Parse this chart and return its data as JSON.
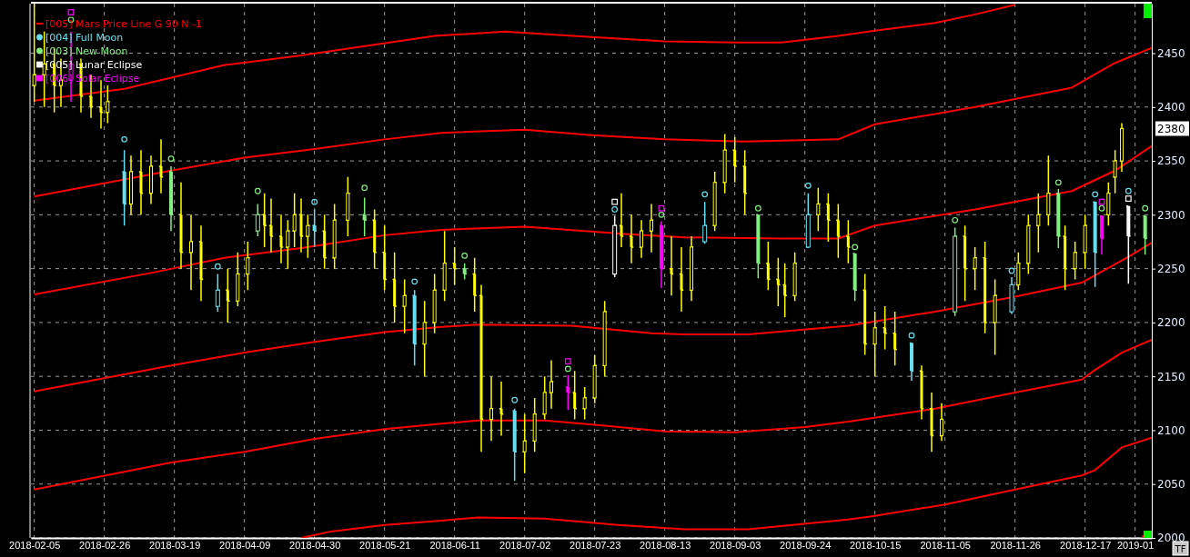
{
  "chart_data": {
    "type": "candlestick",
    "xlim": [
      "2018-02-04",
      "2019-01-06"
    ],
    "ylim": [
      2000,
      2496
    ],
    "xticks": [
      "2018-02-05",
      "2018-02-26",
      "2018-03-19",
      "2018-04-09",
      "2018-04-30",
      "2018-05-21",
      "2018-06-11",
      "2018-07-02",
      "2018-07-23",
      "2018-08-13",
      "2018-09-03",
      "2018-09-24",
      "2018-10-15",
      "2018-11-05",
      "2018-11-26",
      "2018-12-17",
      "2019-01"
    ],
    "yticks": [
      2000,
      2050,
      2100,
      2150,
      2200,
      2250,
      2300,
      2350,
      2400,
      2450
    ],
    "grid": true,
    "legend": "top left",
    "annotations": [
      "2380",
      "TF"
    ],
    "series": [
      {
        "color": "#ffff00",
        "x": [
          "2018-02-05",
          "2018-02-08",
          "2018-02-11",
          "2018-02-13",
          "2018-02-19",
          "2018-02-22",
          "2018-02-25",
          "2018-02-27",
          "2018-03-06",
          "2018-03-09",
          "2018-03-12",
          "2018-03-15",
          "2018-03-21",
          "2018-03-24",
          "2018-03-27",
          "2018-04-04",
          "2018-04-07",
          "2018-04-10",
          "2018-04-15",
          "2018-04-17",
          "2018-04-20",
          "2018-04-22",
          "2018-04-24",
          "2018-04-26",
          "2018-04-28",
          "2018-05-03",
          "2018-05-06",
          "2018-05-10",
          "2018-05-18",
          "2018-05-21",
          "2018-05-24",
          "2018-05-27",
          "2018-06-02",
          "2018-06-05",
          "2018-06-08",
          "2018-06-11",
          "2018-06-17",
          "2018-06-19",
          "2018-06-22",
          "2018-06-25",
          "2018-07-02",
          "2018-07-05",
          "2018-07-08",
          "2018-07-10",
          "2018-07-17",
          "2018-07-20",
          "2018-07-23",
          "2018-07-26",
          "2018-07-31",
          "2018-08-03",
          "2018-08-06",
          "2018-08-09",
          "2018-08-15",
          "2018-08-18",
          "2018-08-21",
          "2018-08-28",
          "2018-08-31",
          "2018-09-03",
          "2018-09-06",
          "2018-09-13",
          "2018-09-16",
          "2018-09-18",
          "2018-09-21",
          "2018-09-28",
          "2018-10-01",
          "2018-10-04",
          "2018-10-07",
          "2018-10-12",
          "2018-10-15",
          "2018-10-18",
          "2018-10-21",
          "2018-10-29",
          "2018-11-01",
          "2018-11-04",
          "2018-11-11",
          "2018-11-14",
          "2018-11-17",
          "2018-11-20",
          "2018-11-27",
          "2018-11-30",
          "2018-12-03",
          "2018-12-06",
          "2018-12-11",
          "2018-12-14",
          "2018-12-17",
          "2018-12-24",
          "2018-12-26",
          "2018-12-28"
        ],
        "ohlc": [
          [
            2420,
            2496,
            2405,
            2430
          ],
          [
            2430,
            2470,
            2400,
            2440
          ],
          [
            2440,
            2455,
            2395,
            2420
          ],
          [
            2420,
            2445,
            2400,
            2425
          ],
          [
            2440,
            2445,
            2395,
            2410
          ],
          [
            2410,
            2430,
            2390,
            2400
          ],
          [
            2400,
            2425,
            2380,
            2395
          ],
          [
            2395,
            2420,
            2385,
            2405
          ],
          [
            2310,
            2355,
            2300,
            2340
          ],
          [
            2340,
            2360,
            2300,
            2320
          ],
          [
            2320,
            2355,
            2310,
            2345
          ],
          [
            2345,
            2370,
            2320,
            2335
          ],
          [
            2300,
            2330,
            2250,
            2265
          ],
          [
            2265,
            2300,
            2230,
            2275
          ],
          [
            2275,
            2290,
            2220,
            2240
          ],
          [
            2230,
            2250,
            2200,
            2220
          ],
          [
            2220,
            2265,
            2215,
            2245
          ],
          [
            2245,
            2275,
            2230,
            2260
          ],
          [
            2300,
            2320,
            2270,
            2290
          ],
          [
            2290,
            2315,
            2265,
            2280
          ],
          [
            2280,
            2300,
            2255,
            2270
          ],
          [
            2270,
            2295,
            2250,
            2285
          ],
          [
            2285,
            2320,
            2270,
            2300
          ],
          [
            2300,
            2315,
            2265,
            2280
          ],
          [
            2280,
            2300,
            2260,
            2290
          ],
          [
            2285,
            2300,
            2250,
            2260
          ],
          [
            2260,
            2310,
            2250,
            2295
          ],
          [
            2295,
            2335,
            2280,
            2320
          ],
          [
            2295,
            2305,
            2250,
            2265
          ],
          [
            2265,
            2290,
            2230,
            2240
          ],
          [
            2240,
            2265,
            2200,
            2215
          ],
          [
            2215,
            2240,
            2190,
            2225
          ],
          [
            2180,
            2220,
            2150,
            2200
          ],
          [
            2200,
            2245,
            2190,
            2230
          ],
          [
            2230,
            2285,
            2220,
            2255
          ],
          [
            2255,
            2270,
            2235,
            2250
          ],
          [
            2245,
            2260,
            2210,
            2225
          ],
          [
            2225,
            2235,
            2080,
            2110
          ],
          [
            2110,
            2150,
            2090,
            2120
          ],
          [
            2120,
            2145,
            2095,
            2115
          ],
          [
            2080,
            2115,
            2060,
            2090
          ],
          [
            2090,
            2130,
            2080,
            2115
          ],
          [
            2115,
            2150,
            2110,
            2135
          ],
          [
            2135,
            2165,
            2120,
            2145
          ],
          [
            2135,
            2155,
            2110,
            2120
          ],
          [
            2120,
            2140,
            2110,
            2130
          ],
          [
            2130,
            2170,
            2125,
            2160
          ],
          [
            2160,
            2220,
            2150,
            2210
          ],
          [
            2290,
            2320,
            2270,
            2280
          ],
          [
            2280,
            2300,
            2255,
            2270
          ],
          [
            2270,
            2295,
            2260,
            2285
          ],
          [
            2285,
            2310,
            2265,
            2295
          ],
          [
            2250,
            2280,
            2225,
            2245
          ],
          [
            2245,
            2270,
            2210,
            2230
          ],
          [
            2230,
            2280,
            2220,
            2270
          ],
          [
            2290,
            2340,
            2285,
            2330
          ],
          [
            2330,
            2375,
            2320,
            2360
          ],
          [
            2360,
            2372,
            2330,
            2345
          ],
          [
            2345,
            2360,
            2300,
            2320
          ],
          [
            2255,
            2275,
            2230,
            2240
          ],
          [
            2240,
            2260,
            2215,
            2235
          ],
          [
            2235,
            2255,
            2205,
            2225
          ],
          [
            2225,
            2265,
            2220,
            2255
          ],
          [
            2300,
            2325,
            2285,
            2310
          ],
          [
            2310,
            2320,
            2275,
            2295
          ],
          [
            2295,
            2310,
            2260,
            2280
          ],
          [
            2280,
            2295,
            2255,
            2270
          ],
          [
            2230,
            2245,
            2170,
            2180
          ],
          [
            2180,
            2210,
            2150,
            2195
          ],
          [
            2195,
            2215,
            2175,
            2190
          ],
          [
            2190,
            2210,
            2160,
            2175
          ],
          [
            2155,
            2160,
            2110,
            2120
          ],
          [
            2120,
            2135,
            2080,
            2095
          ],
          [
            2095,
            2125,
            2090,
            2110
          ],
          [
            2280,
            2290,
            2220,
            2250
          ],
          [
            2250,
            2270,
            2230,
            2260
          ],
          [
            2260,
            2275,
            2190,
            2200
          ],
          [
            2200,
            2240,
            2170,
            2225
          ],
          [
            2235,
            2265,
            2230,
            2255
          ],
          [
            2255,
            2300,
            2245,
            2290
          ],
          [
            2290,
            2320,
            2265,
            2300
          ],
          [
            2300,
            2355,
            2290,
            2320
          ],
          [
            2280,
            2290,
            2230,
            2250
          ],
          [
            2250,
            2275,
            2240,
            2265
          ],
          [
            2265,
            2300,
            2250,
            2290
          ],
          [
            2300,
            2330,
            2290,
            2320
          ],
          [
            2335,
            2360,
            2320,
            2350
          ],
          [
            2350,
            2385,
            2340,
            2380
          ]
        ]
      },
      {
        "color": "#66e0f0",
        "x": [
          "2018-03-04",
          "2018-04-01",
          "2018-04-30",
          "2018-05-30",
          "2018-06-29",
          "2018-08-25",
          "2018-09-25",
          "2018-10-26",
          "2018-11-25",
          "2018-12-20"
        ],
        "ohlc": [
          [
            2340,
            2360,
            2290,
            2310
          ],
          [
            2215,
            2245,
            2210,
            2230
          ],
          [
            2290,
            2305,
            2270,
            2285
          ],
          [
            2225,
            2230,
            2160,
            2180
          ],
          [
            2118,
            2120,
            2053,
            2080
          ],
          [
            2275,
            2312,
            2273,
            2290
          ],
          [
            2270,
            2320,
            2269,
            2300
          ],
          [
            2181,
            2181,
            2146,
            2155
          ],
          [
            2210,
            2242,
            2208,
            2235
          ],
          [
            2312,
            2312,
            2233,
            2265
          ]
        ]
      },
      {
        "color": "#80f080",
        "x": [
          "2018-03-18",
          "2018-04-13",
          "2018-05-15",
          "2018-06-14",
          "2018-09-10",
          "2018-10-09",
          "2018-11-08",
          "2018-12-09",
          "2019-01-04"
        ],
        "ohlc": [
          [
            2340,
            2345,
            2285,
            2300
          ],
          [
            2285,
            2310,
            2280,
            2300
          ],
          [
            2300,
            2316,
            2280,
            2295
          ],
          [
            2250,
            2255,
            2240,
            2245
          ],
          [
            2300,
            2300,
            2241,
            2255
          ],
          [
            2264,
            2264,
            2220,
            2230
          ],
          [
            2210,
            2288,
            2206,
            2280
          ],
          [
            2320,
            2324,
            2269,
            2280
          ],
          [
            2299,
            2299,
            2263,
            2278
          ]
        ]
      },
      {
        "color": "#ffffff",
        "x": [
          "2018-07-29",
          "2018-12-30"
        ],
        "ohlc": [
          [
            2245,
            2299,
            2242,
            2290
          ],
          [
            2308,
            2308,
            2236,
            2280
          ]
        ]
      },
      {
        "color": "#ff00ff",
        "x": [
          "2018-02-16",
          "2018-07-15",
          "2018-08-12",
          "2018-12-22"
        ],
        "ohlc": [
          [
            2425,
            2470,
            2405,
            2440
          ],
          [
            2140,
            2151,
            2119,
            2135
          ],
          [
            2290,
            2294,
            2232,
            2250
          ],
          [
            2299,
            2299,
            2263,
            2278
          ]
        ]
      },
      {
        "type": "line",
        "name": "[005] Mars Price Line G 90 N -1",
        "color": "#ff0000",
        "x": [
          "2018-02-05",
          "2018-03-04",
          "2018-04-03",
          "2018-04-26",
          "2018-06-05",
          "2018-06-26",
          "2018-07-22",
          "2018-08-13",
          "2018-09-03",
          "2018-09-17",
          "2018-10-04",
          "2018-10-15",
          "2018-11-02",
          "2018-11-14",
          "2018-11-26"
        ],
        "values": [
          2406,
          2417,
          2439,
          2448,
          2466,
          2470,
          2465,
          2461,
          2460,
          2460,
          2466,
          2471,
          2478,
          2486,
          2495
        ]
      },
      {
        "type": "line",
        "color": "#ff0000",
        "x": [
          "2018-02-05",
          "2018-03-18",
          "2018-04-09",
          "2018-04-30",
          "2018-05-21",
          "2018-06-07",
          "2018-07-02",
          "2018-07-22",
          "2018-08-13",
          "2018-09-06",
          "2018-10-04",
          "2018-10-15",
          "2018-11-14",
          "2018-12-13",
          "2018-12-26",
          "2019-01-06"
        ],
        "values": [
          2317,
          2341,
          2353,
          2361,
          2370,
          2376,
          2379,
          2374,
          2370,
          2368,
          2370,
          2384,
          2400,
          2418,
          2441,
          2455
        ]
      },
      {
        "type": "line",
        "color": "#ff0000",
        "x": [
          "2018-02-05",
          "2018-03-12",
          "2018-04-03",
          "2018-04-26",
          "2018-05-21",
          "2018-06-07",
          "2018-07-02",
          "2018-08-02",
          "2018-08-19",
          "2018-09-17",
          "2018-10-04",
          "2018-10-15",
          "2018-11-14",
          "2018-12-13",
          "2018-12-26",
          "2019-01-06"
        ],
        "values": [
          2226,
          2246,
          2260,
          2269,
          2281,
          2286,
          2289,
          2282,
          2279,
          2278,
          2278,
          2290,
          2305,
          2322,
          2341,
          2364
        ]
      },
      {
        "type": "line",
        "color": "#ff0000",
        "x": [
          "2018-02-05",
          "2018-03-18",
          "2018-04-09",
          "2018-04-30",
          "2018-05-21",
          "2018-06-07",
          "2018-06-18",
          "2018-07-16",
          "2018-08-09",
          "2018-08-19",
          "2018-09-07",
          "2018-10-07",
          "2018-11-02",
          "2018-11-26",
          "2018-12-16",
          "2018-12-30",
          "2019-01-06"
        ],
        "values": [
          2136,
          2160,
          2172,
          2182,
          2191,
          2196,
          2198,
          2197,
          2190,
          2189,
          2189,
          2197,
          2210,
          2224,
          2237,
          2261,
          2274
        ]
      },
      {
        "type": "line",
        "color": "#ff0000",
        "x": [
          "2018-02-05",
          "2018-03-18",
          "2018-04-09",
          "2018-04-30",
          "2018-05-21",
          "2018-06-07",
          "2018-06-18",
          "2018-07-08",
          "2018-07-23",
          "2018-08-13",
          "2018-09-03",
          "2018-09-24",
          "2018-10-07",
          "2018-11-02",
          "2018-11-26",
          "2018-12-16",
          "2018-12-20",
          "2018-12-28",
          "2019-01-06"
        ],
        "values": [
          2045,
          2070,
          2080,
          2092,
          2101,
          2106,
          2109,
          2109,
          2105,
          2099,
          2098,
          2103,
          2108,
          2120,
          2135,
          2147,
          2156,
          2172,
          2184
        ]
      },
      {
        "type": "line",
        "color": "#ff0000",
        "x": [
          "2018-04-26",
          "2018-05-05",
          "2018-05-21",
          "2018-06-07",
          "2018-06-18",
          "2018-07-08",
          "2018-07-30",
          "2018-08-19",
          "2018-09-07",
          "2018-10-07",
          "2018-10-14",
          "2018-11-05",
          "2018-11-26",
          "2018-12-16",
          "2018-12-20",
          "2018-12-28",
          "2019-01-06"
        ],
        "values": [
          2000,
          2006,
          2012,
          2016,
          2019,
          2018,
          2012,
          2008,
          2008,
          2017,
          2020,
          2031,
          2045,
          2058,
          2063,
          2084,
          2093
        ]
      },
      {
        "type": "line",
        "color": "#ff0000",
        "x": [
          "2019-01-03",
          "2019-01-06"
        ],
        "values": [
          2001,
          2004
        ]
      },
      {
        "type": "scatter",
        "name": "[004] Full Moon",
        "color": "#66e0f0",
        "marker": "circle",
        "x": [
          "2018-03-04",
          "2018-04-01",
          "2018-04-30",
          "2018-05-30",
          "2018-06-29",
          "2018-07-29",
          "2018-08-25",
          "2018-09-25",
          "2018-10-26",
          "2018-11-25",
          "2018-12-20",
          "2018-12-30"
        ],
        "values": [
          2370,
          2252,
          2312,
          2238,
          2128,
          2305,
          2319,
          2327,
          2188,
          2248,
          2319,
          2322
        ]
      },
      {
        "type": "scatter",
        "name": "[003] New Moon",
        "color": "#80f080",
        "marker": "circle",
        "x": [
          "2018-02-16",
          "2018-03-18",
          "2018-04-13",
          "2018-05-15",
          "2018-06-14",
          "2018-07-15",
          "2018-08-12",
          "2018-09-10",
          "2018-10-09",
          "2018-11-08",
          "2018-12-09",
          "2018-12-22",
          "2019-01-04"
        ],
        "values": [
          2481,
          2352,
          2322,
          2325,
          2262,
          2157,
          2300,
          2306,
          2270,
          2295,
          2330,
          2306,
          2306
        ]
      },
      {
        "type": "scatter",
        "name": "[005] Lunar Eclipse",
        "color": "#ffffff",
        "marker": "square",
        "x": [
          "2018-07-29",
          "2018-12-30"
        ],
        "values": [
          2312,
          2315
        ]
      },
      {
        "type": "scatter",
        "name": "[006] Solar Eclipse",
        "color": "#ff00ff",
        "marker": "square",
        "x": [
          "2018-02-16",
          "2018-07-15",
          "2018-08-12",
          "2018-12-22"
        ],
        "values": [
          2488,
          2164,
          2306,
          2312
        ]
      }
    ]
  }
}
